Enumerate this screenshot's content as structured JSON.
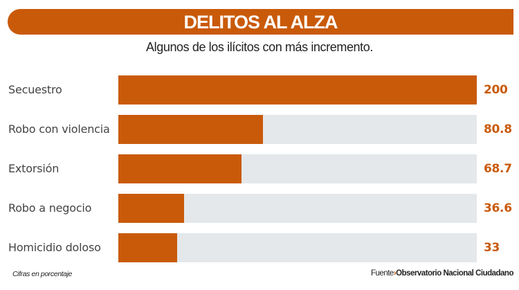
{
  "header": {
    "title": "DELITOS AL ALZA",
    "subtitle": "Algunos de los ilícitos con más incremento."
  },
  "footer": {
    "note": "Cifras en porcentaje",
    "source_label": "Fuente",
    "source_separator": "›",
    "source_name": "Observatorio Nacional Ciudadano"
  },
  "colors": {
    "accent": "#c95a0a",
    "track": "#e4e8ea",
    "label": "#444444"
  },
  "rows": [
    {
      "label": "Secuestro",
      "value": "200"
    },
    {
      "label": "Robo con violencia",
      "value": "80.8"
    },
    {
      "label": "Extorsión",
      "value": "68.7"
    },
    {
      "label": "Robo a negocio",
      "value": "36.6"
    },
    {
      "label": "Homicidio doloso",
      "value": "33"
    }
  ],
  "chart_data": {
    "type": "bar",
    "orientation": "horizontal",
    "title": "DELITOS AL ALZA",
    "subtitle": "Algunos de los ilícitos con más incremento.",
    "categories": [
      "Secuestro",
      "Robo con violencia",
      "Extorsión",
      "Robo a negocio",
      "Homicidio doloso"
    ],
    "values": [
      200,
      80.8,
      68.7,
      36.6,
      33
    ],
    "unit": "%",
    "xlabel": "",
    "ylabel": "",
    "xlim": [
      0,
      200
    ],
    "grid": false,
    "legend": null,
    "annotations": [
      "Cifras en porcentaje",
      "Fuente › Observatorio Nacional Ciudadano"
    ]
  }
}
